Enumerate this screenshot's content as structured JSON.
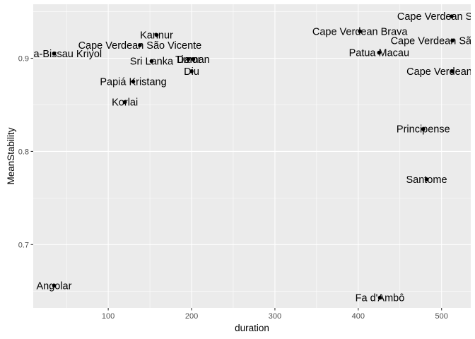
{
  "chart_data": {
    "type": "scatter",
    "title": "",
    "xlabel": "duration",
    "ylabel": "MeanStability",
    "xlim": [
      10,
      535
    ],
    "ylim": [
      0.632,
      0.958
    ],
    "x_ticks": [
      100,
      200,
      300,
      400,
      500
    ],
    "y_ticks": [
      0.7,
      0.8,
      0.9
    ],
    "x_tick_labels": [
      "100",
      "200",
      "300",
      "400",
      "500"
    ],
    "y_tick_labels": [
      "0.7",
      "0.8",
      "0.9"
    ],
    "grid": true,
    "legend": "none",
    "point_color": "#000000",
    "panel_color": "#ebebeb",
    "points": [
      {
        "label": "Cape Verdean Santiago",
        "x": 512,
        "y": 0.945
      },
      {
        "label": "Cape Verdean Brava",
        "x": 402,
        "y": 0.929
      },
      {
        "label": "Cape Verdean São Nicolau",
        "x": 513,
        "y": 0.919
      },
      {
        "label": "Patua Macau",
        "x": 425,
        "y": 0.906
      },
      {
        "label": "Cape Verdean Fogo",
        "x": 513,
        "y": 0.886
      },
      {
        "label": "Kannur",
        "x": 158,
        "y": 0.925
      },
      {
        "label": "Cape Verdean São Vicente",
        "x": 138,
        "y": 0.914
      },
      {
        "label": "Guinea-Bissau Kriyol",
        "x": 35,
        "y": 0.905
      },
      {
        "label": "Timor",
        "x": 196,
        "y": 0.899
      },
      {
        "label": "Daman",
        "x": 202,
        "y": 0.899
      },
      {
        "label": "Sri Lanka",
        "x": 152,
        "y": 0.897
      },
      {
        "label": "Diu",
        "x": 200,
        "y": 0.886
      },
      {
        "label": "Papiá Kristang",
        "x": 130,
        "y": 0.875
      },
      {
        "label": "Korlai",
        "x": 120,
        "y": 0.853
      },
      {
        "label": "Principense",
        "x": 478,
        "y": 0.824
      },
      {
        "label": "Santome",
        "x": 482,
        "y": 0.77
      },
      {
        "label": "Angolar",
        "x": 35,
        "y": 0.656
      },
      {
        "label": "Fa d'Ambô",
        "x": 426,
        "y": 0.643
      }
    ]
  }
}
